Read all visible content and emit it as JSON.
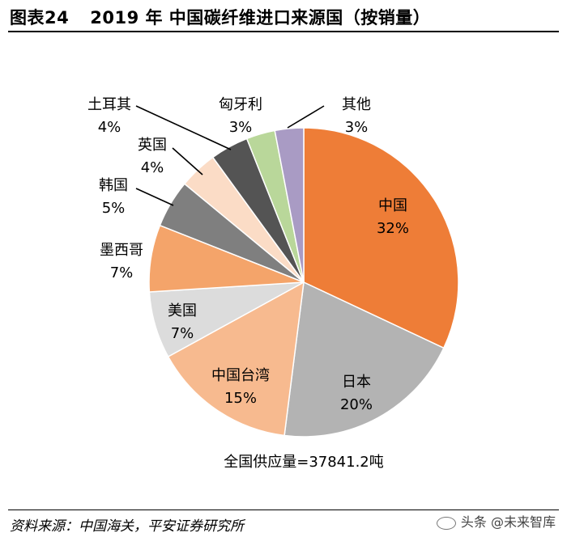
{
  "header": {
    "number": "图表24",
    "title": "2019 年 中国碳纤维进口来源国（按销量）"
  },
  "footer": {
    "source": "资料来源：中国海关，平安证券研究所",
    "watermark": "头条 @未来智库"
  },
  "chart_data": {
    "type": "pie",
    "title": "2019 年 中国碳纤维进口来源国（按销量）",
    "unit": "%",
    "slices": [
      {
        "name": "中国",
        "value": 32,
        "color": "#ee7d37"
      },
      {
        "name": "日本",
        "value": 20,
        "color": "#b3b3b3"
      },
      {
        "name": "中国台湾",
        "value": 15,
        "color": "#f7ba8f"
      },
      {
        "name": "美国",
        "value": 7,
        "color": "#dcdcdc"
      },
      {
        "name": "墨西哥",
        "value": 7,
        "color": "#f4a46a"
      },
      {
        "name": "韩国",
        "value": 5,
        "color": "#7f7f7f"
      },
      {
        "name": "英国",
        "value": 4,
        "color": "#fbdcc6"
      },
      {
        "name": "土耳其",
        "value": 4,
        "color": "#545454"
      },
      {
        "name": "匈牙利",
        "value": 3,
        "color": "#b9d79a"
      },
      {
        "name": "其他",
        "value": 3,
        "color": "#a99bc4"
      }
    ],
    "annotation": "全国供应量=37841.2吨"
  }
}
